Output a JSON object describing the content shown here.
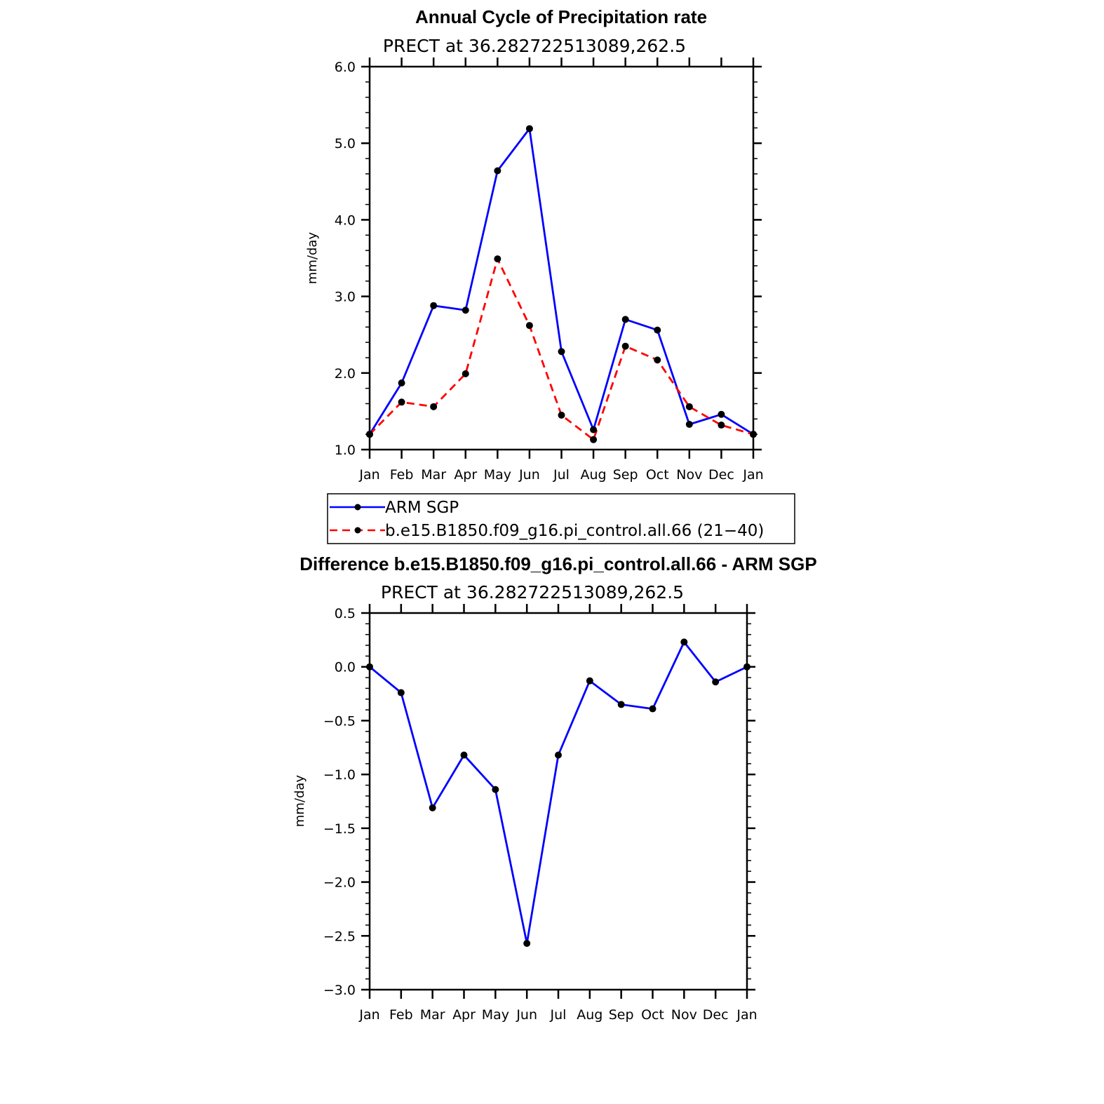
{
  "chart_data": [
    {
      "type": "line",
      "title": "Annual Cycle of Precipitation rate",
      "subtitle": "PRECT at 36.282722513089,262.5",
      "xlabel": "",
      "ylabel": "mm/day",
      "categories": [
        "Jan",
        "Feb",
        "Mar",
        "Apr",
        "May",
        "Jun",
        "Jul",
        "Aug",
        "Sep",
        "Oct",
        "Nov",
        "Dec",
        "Jan"
      ],
      "ylim": [
        1.0,
        6.0
      ],
      "yticks": [
        "1.0",
        "2.0",
        "3.0",
        "4.0",
        "5.0",
        "6.0"
      ],
      "series": [
        {
          "name": "ARM SGP",
          "color": "#0000ff",
          "dash": "solid",
          "values": [
            1.2,
            1.87,
            2.88,
            2.82,
            4.64,
            5.19,
            2.28,
            1.26,
            2.7,
            2.56,
            1.33,
            1.46,
            1.2
          ]
        },
        {
          "name": "b.e15.B1850.f09_g16.pi_control.all.66 (21−40)",
          "color": "#ff0000",
          "dash": "dashed",
          "values": [
            1.2,
            1.62,
            1.56,
            1.99,
            3.49,
            2.62,
            1.45,
            1.13,
            2.35,
            2.17,
            1.56,
            1.32,
            1.2
          ]
        }
      ],
      "legend": "below"
    },
    {
      "type": "line",
      "title": "Difference b.e15.B1850.f09_g16.pi_control.all.66 - ARM SGP",
      "subtitle": "PRECT at 36.282722513089,262.5",
      "xlabel": "",
      "ylabel": "mm/day",
      "categories": [
        "Jan",
        "Feb",
        "Mar",
        "Apr",
        "May",
        "Jun",
        "Jul",
        "Aug",
        "Sep",
        "Oct",
        "Nov",
        "Dec",
        "Jan"
      ],
      "ylim": [
        -3.0,
        0.5
      ],
      "yticks": [
        "−3.0",
        "−2.5",
        "−2.0",
        "−1.5",
        "−1.0",
        "−0.5",
        "0.0",
        "0.5"
      ],
      "series": [
        {
          "name": "Difference",
          "color": "#0000ff",
          "dash": "solid",
          "values": [
            0.0,
            -0.24,
            -1.31,
            -0.82,
            -1.14,
            -2.57,
            -0.82,
            -0.13,
            -0.35,
            -0.39,
            0.23,
            -0.14,
            0.0
          ]
        }
      ]
    }
  ]
}
